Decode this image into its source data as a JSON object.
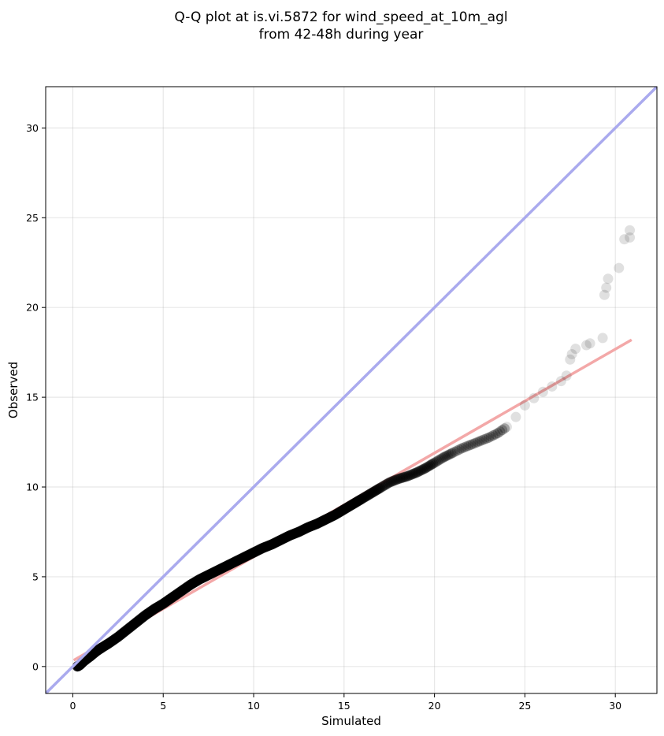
{
  "chart_data": {
    "type": "scatter",
    "title_lines": [
      "Q-Q plot at is.vi.5872 for wind_speed_at_10m_agl",
      "from 42-48h during year"
    ],
    "xlabel": "Simulated",
    "ylabel": "Observed",
    "xlim": [
      -1.5,
      32.3
    ],
    "ylim": [
      -1.5,
      32.3
    ],
    "xticks": [
      0,
      5,
      10,
      15,
      20,
      25,
      30
    ],
    "yticks": [
      0,
      5,
      10,
      15,
      20,
      25,
      30
    ],
    "grid": true,
    "identity_line": {
      "x": [
        -1.5,
        32.3
      ],
      "y": [
        -1.5,
        32.3
      ],
      "color": "#aaaaee"
    },
    "fit_line": {
      "x": [
        0.05,
        30.9
      ],
      "y": [
        0.35,
        18.2
      ],
      "color": "#f3a8a8"
    },
    "point_color": "#000000",
    "quantiles": [
      {
        "x": 0.25,
        "y": 0.0
      },
      {
        "x": 0.4,
        "y": 0.1
      },
      {
        "x": 0.55,
        "y": 0.25
      },
      {
        "x": 0.8,
        "y": 0.45
      },
      {
        "x": 1.0,
        "y": 0.6
      },
      {
        "x": 1.3,
        "y": 0.85
      },
      {
        "x": 1.6,
        "y": 1.05
      },
      {
        "x": 2.0,
        "y": 1.3
      },
      {
        "x": 2.5,
        "y": 1.65
      },
      {
        "x": 3.0,
        "y": 2.05
      },
      {
        "x": 3.5,
        "y": 2.45
      },
      {
        "x": 4.0,
        "y": 2.85
      },
      {
        "x": 4.5,
        "y": 3.2
      },
      {
        "x": 5.0,
        "y": 3.5
      },
      {
        "x": 5.5,
        "y": 3.85
      },
      {
        "x": 6.0,
        "y": 4.2
      },
      {
        "x": 6.5,
        "y": 4.55
      },
      {
        "x": 7.0,
        "y": 4.85
      },
      {
        "x": 7.5,
        "y": 5.1
      },
      {
        "x": 8.0,
        "y": 5.35
      },
      {
        "x": 8.5,
        "y": 5.6
      },
      {
        "x": 9.0,
        "y": 5.85
      },
      {
        "x": 9.5,
        "y": 6.1
      },
      {
        "x": 10.0,
        "y": 6.35
      },
      {
        "x": 10.5,
        "y": 6.6
      },
      {
        "x": 11.0,
        "y": 6.8
      },
      {
        "x": 11.5,
        "y": 7.05
      },
      {
        "x": 12.0,
        "y": 7.3
      },
      {
        "x": 12.5,
        "y": 7.5
      },
      {
        "x": 13.0,
        "y": 7.75
      },
      {
        "x": 13.5,
        "y": 7.95
      },
      {
        "x": 14.0,
        "y": 8.2
      },
      {
        "x": 14.5,
        "y": 8.45
      },
      {
        "x": 15.0,
        "y": 8.75
      },
      {
        "x": 15.5,
        "y": 9.05
      },
      {
        "x": 16.0,
        "y": 9.35
      },
      {
        "x": 16.5,
        "y": 9.65
      },
      {
        "x": 17.0,
        "y": 9.95
      },
      {
        "x": 17.5,
        "y": 10.25
      },
      {
        "x": 18.0,
        "y": 10.45
      },
      {
        "x": 18.5,
        "y": 10.6
      },
      {
        "x": 19.0,
        "y": 10.8
      },
      {
        "x": 19.5,
        "y": 11.05
      },
      {
        "x": 20.0,
        "y": 11.35
      },
      {
        "x": 20.5,
        "y": 11.65
      },
      {
        "x": 21.0,
        "y": 11.9
      },
      {
        "x": 21.5,
        "y": 12.15
      },
      {
        "x": 22.0,
        "y": 12.35
      },
      {
        "x": 22.5,
        "y": 12.55
      },
      {
        "x": 23.0,
        "y": 12.75
      },
      {
        "x": 23.5,
        "y": 13.0
      },
      {
        "x": 24.0,
        "y": 13.35
      },
      {
        "x": 24.5,
        "y": 13.9
      },
      {
        "x": 25.0,
        "y": 14.55
      },
      {
        "x": 25.5,
        "y": 14.95
      },
      {
        "x": 26.0,
        "y": 15.3
      },
      {
        "x": 26.5,
        "y": 15.6
      },
      {
        "x": 27.0,
        "y": 15.9
      },
      {
        "x": 27.3,
        "y": 16.2
      },
      {
        "x": 27.5,
        "y": 17.1
      },
      {
        "x": 27.6,
        "y": 17.4
      },
      {
        "x": 27.8,
        "y": 17.7
      },
      {
        "x": 28.4,
        "y": 17.9
      },
      {
        "x": 28.6,
        "y": 18.0
      },
      {
        "x": 29.3,
        "y": 18.3
      },
      {
        "x": 29.4,
        "y": 20.7
      },
      {
        "x": 29.5,
        "y": 21.1
      },
      {
        "x": 29.6,
        "y": 21.6
      },
      {
        "x": 30.2,
        "y": 22.2
      },
      {
        "x": 30.5,
        "y": 23.8
      },
      {
        "x": 30.8,
        "y": 23.9
      },
      {
        "x": 30.8,
        "y": 24.3
      }
    ]
  }
}
